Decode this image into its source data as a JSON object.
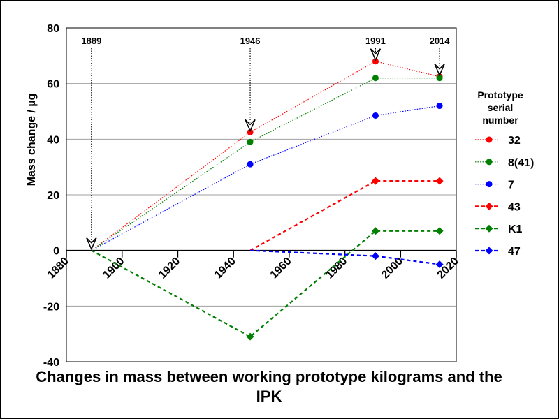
{
  "chart_data": {
    "type": "line",
    "title": "Changes in mass between working prototype kilograms and the IPK",
    "ylabel": "Mass change / µg",
    "xlabel": "",
    "xlim": [
      1880,
      2020
    ],
    "ylim": [
      -40,
      80
    ],
    "xticks": [
      1880,
      1900,
      1920,
      1940,
      1960,
      1980,
      2000,
      2020
    ],
    "yticks": [
      -40,
      -20,
      0,
      20,
      40,
      60,
      80
    ],
    "grid": "horizontal",
    "legend": {
      "title": "Prototype serial number",
      "title_lines": [
        "Prototype",
        "serial",
        "number"
      ],
      "placement": "right"
    },
    "annotations": [
      {
        "label": "1889",
        "x": 1889,
        "y": 0
      },
      {
        "label": "1946",
        "x": 1946,
        "y": 42.5
      },
      {
        "label": "1991",
        "x": 1991,
        "y": 68
      },
      {
        "label": "2014",
        "x": 2014,
        "y": 62.5
      }
    ],
    "series": [
      {
        "name": "32",
        "color": "#ff0000",
        "style": "dotted",
        "marker": "circle",
        "points": [
          [
            1889,
            0
          ],
          [
            1946,
            42.5
          ],
          [
            1991,
            68
          ],
          [
            2014,
            62.5
          ]
        ]
      },
      {
        "name": "8(41)",
        "color": "#008000",
        "style": "dotted",
        "marker": "circle",
        "points": [
          [
            1889,
            0
          ],
          [
            1946,
            39
          ],
          [
            1991,
            62
          ],
          [
            2014,
            62
          ]
        ]
      },
      {
        "name": "7",
        "color": "#0000ff",
        "style": "dotted",
        "marker": "circle",
        "points": [
          [
            1889,
            0
          ],
          [
            1946,
            31
          ],
          [
            1991,
            48.5
          ],
          [
            2014,
            52
          ]
        ]
      },
      {
        "name": "43",
        "color": "#ff0000",
        "style": "dashed",
        "marker": "diamond",
        "points": [
          [
            1946,
            0
          ],
          [
            1991,
            25
          ],
          [
            2014,
            25
          ]
        ]
      },
      {
        "name": "K1",
        "color": "#008000",
        "style": "dashed",
        "marker": "diamond",
        "points": [
          [
            1889,
            0
          ],
          [
            1946,
            -31
          ],
          [
            1991,
            7
          ],
          [
            2014,
            7
          ]
        ]
      },
      {
        "name": "47",
        "color": "#0000ff",
        "style": "dashed",
        "marker": "diamond",
        "points": [
          [
            1946,
            0
          ],
          [
            1991,
            -2
          ],
          [
            2014,
            -5
          ]
        ]
      }
    ]
  }
}
